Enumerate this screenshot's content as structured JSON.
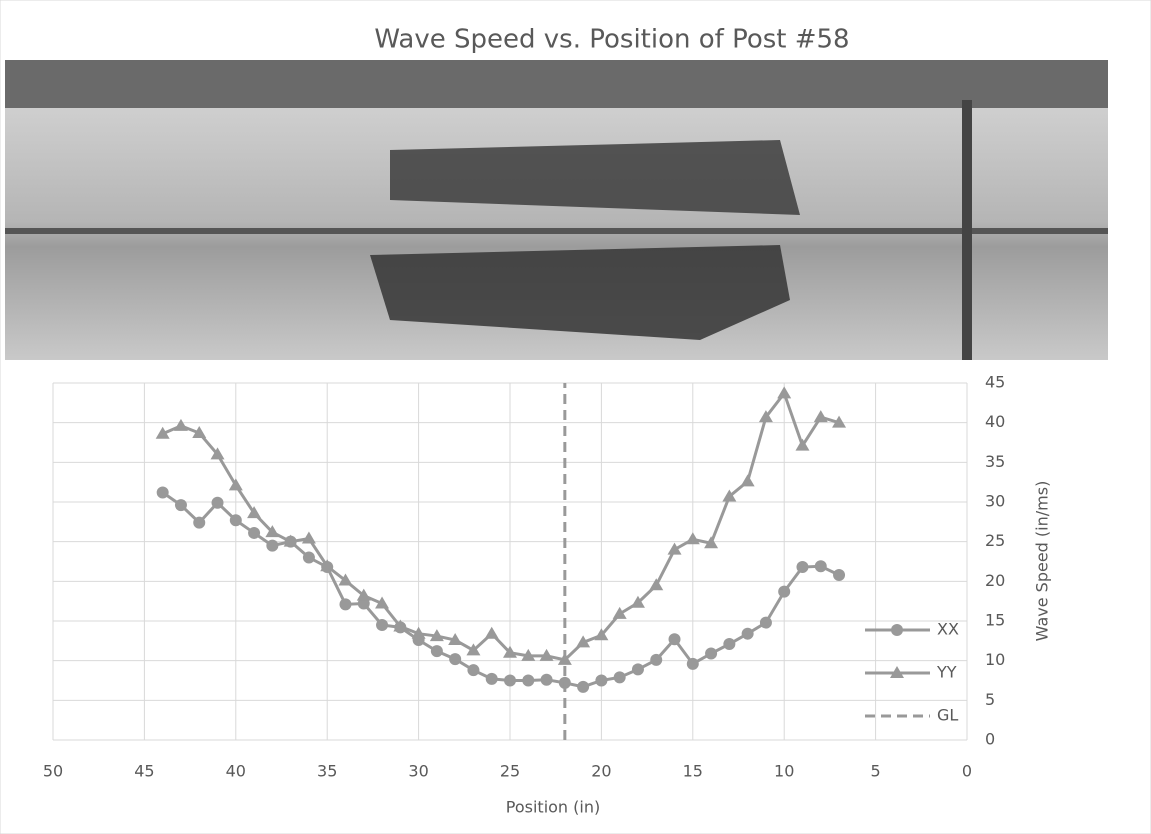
{
  "chart_data": {
    "type": "line",
    "title": "Wave Speed vs. Position of Post #58",
    "x_label": "Position (in)",
    "y_label": "Wave Speed (in/ms)",
    "xlim": [
      50,
      0
    ],
    "xticks": [
      50,
      45,
      40,
      35,
      30,
      25,
      20,
      15,
      10,
      5,
      0
    ],
    "ylim": [
      0,
      45
    ],
    "yticks": [
      0,
      5,
      10,
      15,
      20,
      25,
      30,
      35,
      40,
      45
    ],
    "y_axis_side": "right",
    "grid": true,
    "legend": "right",
    "series": [
      {
        "name": "XX",
        "color": "#999999",
        "marker": "circle",
        "dashed": false,
        "x": [
          44,
          43,
          42,
          41,
          40,
          39,
          38,
          37,
          36,
          35,
          34,
          33,
          32,
          31,
          30,
          29,
          28,
          27,
          26,
          25,
          24,
          23,
          22,
          21,
          20,
          19,
          18,
          17,
          16,
          15,
          14,
          13,
          12,
          11,
          10,
          9,
          8,
          7
        ],
        "values": [
          31.2,
          29.6,
          27.4,
          29.9,
          27.7,
          26.1,
          24.5,
          25.0,
          23.0,
          21.8,
          17.1,
          17.2,
          14.5,
          14.2,
          12.6,
          11.2,
          10.2,
          8.8,
          7.7,
          7.5,
          7.5,
          7.6,
          7.2,
          6.7,
          7.5,
          7.9,
          8.9,
          10.1,
          12.7,
          9.6,
          10.9,
          12.1,
          13.4,
          14.8,
          18.7,
          21.8,
          21.9,
          20.8
        ]
      },
      {
        "name": "YY",
        "color": "#999999",
        "marker": "triangle",
        "dashed": false,
        "x": [
          44,
          43,
          42,
          41,
          40,
          39,
          38,
          37,
          36,
          35,
          34,
          33,
          32,
          31,
          30,
          29,
          28,
          27,
          26,
          25,
          24,
          23,
          22,
          21,
          20,
          19,
          18,
          17,
          16,
          15,
          14,
          13,
          12,
          11,
          10,
          9,
          8,
          7
        ],
        "values": [
          38.6,
          39.6,
          38.7,
          36.0,
          32.1,
          28.6,
          26.2,
          25.0,
          25.4,
          21.9,
          20.1,
          18.2,
          17.2,
          14.3,
          13.4,
          13.1,
          12.6,
          11.3,
          13.4,
          11.0,
          10.6,
          10.6,
          10.1,
          12.3,
          13.2,
          15.9,
          17.3,
          19.5,
          24.0,
          25.3,
          24.8,
          30.7,
          32.6,
          40.7,
          43.7,
          37.1,
          40.7,
          40.0
        ]
      },
      {
        "name": "GL",
        "color": "#999999",
        "marker": "none",
        "dashed": true,
        "x": [
          22,
          22
        ],
        "values": [
          0,
          45
        ]
      }
    ]
  }
}
